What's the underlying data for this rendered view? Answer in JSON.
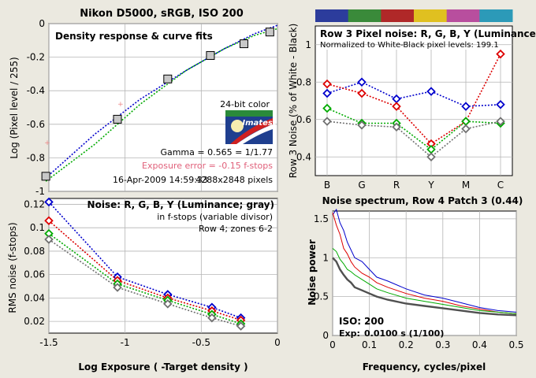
{
  "page_title": "Nikon D5000, sRGB, ISO 200",
  "colors": {
    "red": "#dd0000",
    "green": "#00aa00",
    "blue": "#0000cc",
    "gray": "#707070",
    "title": "#4a1560"
  },
  "icons": {
    "logo": "imatest-logo"
  },
  "chart_data": [
    {
      "id": "density",
      "type": "line",
      "title": "Density response & curve fits",
      "xlabel": "",
      "ylabel": "Log (Pixel level / 255)",
      "xlim": [
        -1.5,
        0
      ],
      "ylim": [
        -1,
        0
      ],
      "xticks": [
        "-1.5",
        "-1",
        "-0.5",
        "0"
      ],
      "yticks": [
        "0",
        "-0.2",
        "-0.4",
        "-0.6",
        "-0.8",
        "-1"
      ],
      "grid": true,
      "measured": {
        "x": [
          -1.52,
          -1.05,
          -0.72,
          -0.44,
          -0.22,
          -0.05
        ],
        "y": [
          -0.91,
          -0.57,
          -0.33,
          -0.19,
          -0.12,
          -0.05
        ]
      },
      "outliers": {
        "x": [
          -1.51,
          -1.03
        ],
        "y": [
          -0.71,
          -0.48
        ]
      },
      "fit_blue": {
        "x": [
          -1.52,
          -1.2,
          -0.9,
          -0.6,
          -0.35,
          -0.15,
          0.0
        ],
        "y": [
          -0.92,
          -0.66,
          -0.45,
          -0.28,
          -0.15,
          -0.06,
          -0.01
        ]
      },
      "fit_green": {
        "x": [
          -1.52,
          -1.2,
          -0.9,
          -0.6,
          -0.35,
          -0.15,
          0.0
        ],
        "y": [
          -0.94,
          -0.72,
          -0.48,
          -0.28,
          -0.15,
          -0.07,
          -0.03
        ]
      },
      "logo_caption": "24-bit color",
      "logo_text": "Imatest",
      "gamma": "Gamma = 0.565 = 1/1.77",
      "exposure_error": "Exposure error = -0.15 f-stops",
      "date": "16-Apr-2009 14:59:33",
      "pixels": "4288x2848 pixels"
    },
    {
      "id": "noise-fstops",
      "type": "line",
      "title": "Noise: R, G, B, Y (Luminance; gray)",
      "note1": "in f-stops (variable divisor)",
      "note2": "Row 4; zones 6-2",
      "xlabel": "Log Exposure ( -Target density )",
      "ylabel": "RMS noise (f-stops)",
      "xlim": [
        -1.5,
        0
      ],
      "ylim": [
        0.01,
        0.125
      ],
      "xticks": [
        "-1.5",
        "-1",
        "-0.5",
        "0"
      ],
      "yticks": [
        "0.12",
        "0.1",
        "0.08",
        "0.06",
        "0.04",
        "0.02"
      ],
      "grid": true,
      "x": [
        -1.5,
        -1.05,
        -0.72,
        -0.43,
        -0.24
      ],
      "series": [
        {
          "color": "blue",
          "values": [
            0.122,
            0.058,
            0.043,
            0.032,
            0.023
          ]
        },
        {
          "color": "red",
          "values": [
            0.106,
            0.055,
            0.04,
            0.029,
            0.021
          ]
        },
        {
          "color": "green",
          "values": [
            0.095,
            0.052,
            0.038,
            0.026,
            0.018
          ]
        },
        {
          "color": "gray",
          "values": [
            0.09,
            0.049,
            0.035,
            0.023,
            0.016
          ]
        }
      ]
    },
    {
      "id": "row3-noise",
      "type": "line",
      "title": "Row 3 Pixel noise: R, G, B, Y (Luminance)",
      "subtitle": "Normalized to White-Black pixel levels: 199.1",
      "xlabel": "",
      "ylabel": "Row 3 Noise (% of White - Black)",
      "categories": [
        "B",
        "G",
        "R",
        "Y",
        "M",
        "C"
      ],
      "ylim": [
        0.3,
        1.1
      ],
      "yticks": [
        "1",
        "0.8",
        "0.6",
        "0.4"
      ],
      "grid": true,
      "swatches": [
        "#2c3c9c",
        "#3a8a3a",
        "#b02828",
        "#e0c020",
        "#b84e9e",
        "#2c9ab8"
      ],
      "series": [
        {
          "color": "blue",
          "values": [
            0.74,
            0.8,
            0.71,
            0.75,
            0.67,
            0.68
          ]
        },
        {
          "color": "red",
          "values": [
            0.79,
            0.74,
            0.67,
            0.47,
            0.59,
            0.95
          ]
        },
        {
          "color": "green",
          "values": [
            0.66,
            0.58,
            0.58,
            0.44,
            0.59,
            0.58
          ]
        },
        {
          "color": "gray",
          "values": [
            0.59,
            0.57,
            0.56,
            0.4,
            0.55,
            0.59
          ]
        }
      ]
    },
    {
      "id": "spectrum",
      "type": "line",
      "title": "Noise spectrum, Row 4 Patch 3 (0.44)",
      "xlabel": "Frequency, cycles/pixel",
      "ylabel": "Noise power",
      "xlim": [
        0,
        0.5
      ],
      "ylim": [
        0,
        1.6
      ],
      "xticks": [
        "0",
        "0.1",
        "0.2",
        "0.3",
        "0.4",
        "0.5"
      ],
      "yticks": [
        "1.5",
        "1",
        "0.5",
        "0"
      ],
      "grid": true,
      "iso_label": "ISO:",
      "iso_value": "200",
      "exp_label": "Exp:",
      "exp_value": "0.0100 s  (1/100)",
      "x": [
        0.0,
        0.01,
        0.02,
        0.03,
        0.04,
        0.05,
        0.06,
        0.08,
        0.1,
        0.12,
        0.15,
        0.2,
        0.25,
        0.3,
        0.35,
        0.4,
        0.45,
        0.5
      ],
      "series": [
        {
          "color": "blue",
          "values": [
            1.55,
            1.62,
            1.45,
            1.35,
            1.2,
            1.1,
            1.0,
            0.95,
            0.85,
            0.75,
            0.7,
            0.6,
            0.52,
            0.48,
            0.42,
            0.36,
            0.32,
            0.3
          ]
        },
        {
          "color": "red",
          "values": [
            1.58,
            1.42,
            1.3,
            1.12,
            1.05,
            0.95,
            0.88,
            0.8,
            0.75,
            0.68,
            0.62,
            0.54,
            0.48,
            0.44,
            0.38,
            0.34,
            0.3,
            0.28
          ]
        },
        {
          "color": "green",
          "values": [
            1.12,
            1.08,
            0.98,
            0.92,
            0.85,
            0.82,
            0.78,
            0.72,
            0.66,
            0.6,
            0.55,
            0.48,
            0.44,
            0.4,
            0.36,
            0.32,
            0.3,
            0.28
          ]
        },
        {
          "color": "gray",
          "values": [
            1.0,
            0.95,
            0.85,
            0.78,
            0.72,
            0.68,
            0.62,
            0.58,
            0.54,
            0.5,
            0.46,
            0.41,
            0.38,
            0.35,
            0.32,
            0.29,
            0.27,
            0.26
          ]
        }
      ]
    }
  ]
}
